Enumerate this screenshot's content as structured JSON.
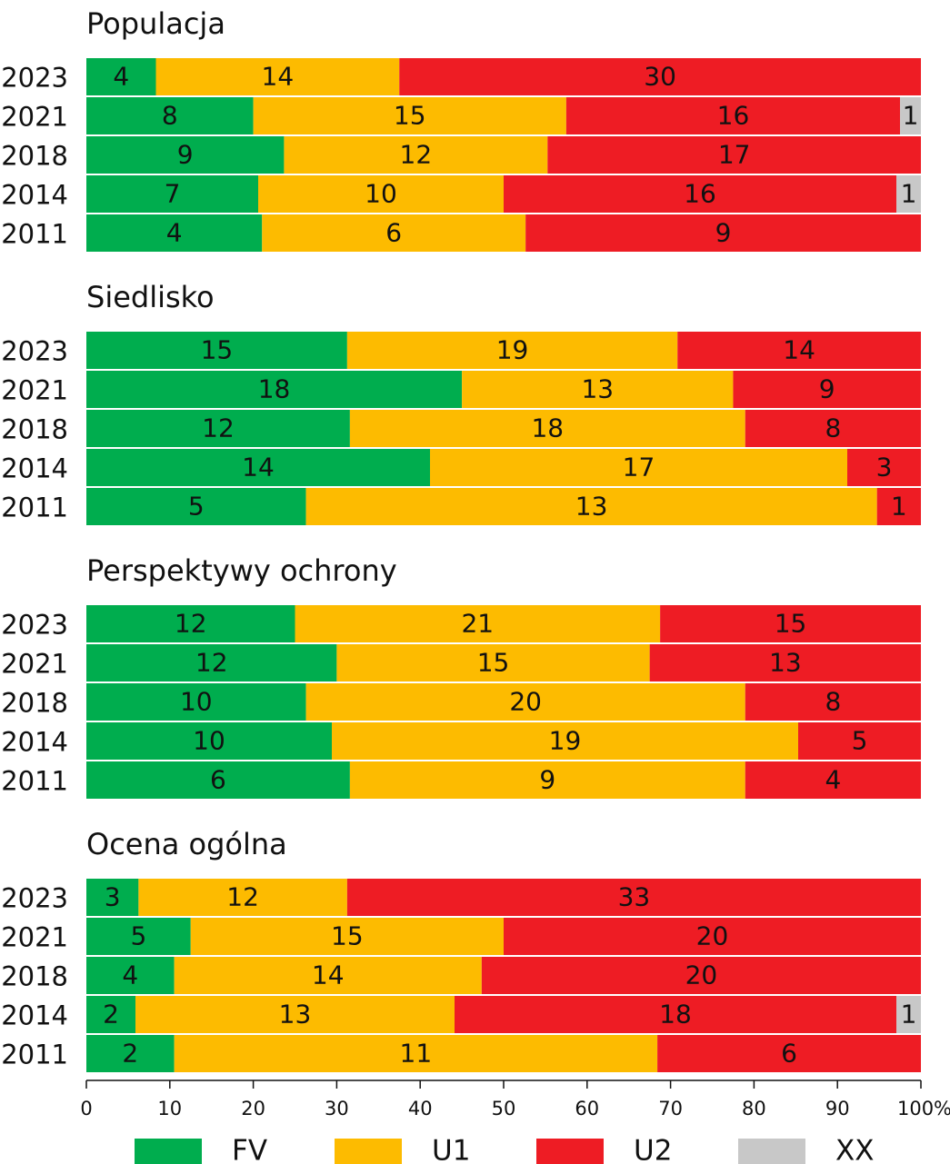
{
  "chart_data": {
    "type": "bar",
    "orientation": "horizontal",
    "stacking": "percent",
    "series": [
      {
        "name": "FV",
        "color": "#00ad4e"
      },
      {
        "name": "U1",
        "color": "#fdbb00"
      },
      {
        "name": "U2",
        "color": "#ee1c24"
      },
      {
        "name": "XX",
        "color": "#c8c8c8"
      }
    ],
    "panels": [
      {
        "title": "Populacja",
        "categories": [
          "2023",
          "2021",
          "2018",
          "2014",
          "2011"
        ],
        "values": [
          [
            4,
            14,
            30,
            null
          ],
          [
            8,
            15,
            16,
            1
          ],
          [
            9,
            12,
            17,
            null
          ],
          [
            7,
            10,
            16,
            1
          ],
          [
            4,
            6,
            9,
            null
          ]
        ]
      },
      {
        "title": "Siedlisko",
        "categories": [
          "2023",
          "2021",
          "2018",
          "2014",
          "2011"
        ],
        "values": [
          [
            15,
            19,
            14,
            null
          ],
          [
            18,
            13,
            9,
            null
          ],
          [
            12,
            18,
            8,
            null
          ],
          [
            14,
            17,
            3,
            null
          ],
          [
            5,
            13,
            1,
            null
          ]
        ]
      },
      {
        "title": "Perspektywy ochrony",
        "categories": [
          "2023",
          "2021",
          "2018",
          "2014",
          "2011"
        ],
        "values": [
          [
            12,
            21,
            15,
            null
          ],
          [
            12,
            15,
            13,
            null
          ],
          [
            10,
            20,
            8,
            null
          ],
          [
            10,
            19,
            5,
            null
          ],
          [
            6,
            9,
            4,
            null
          ]
        ]
      },
      {
        "title": "Ocena ogólna",
        "categories": [
          "2023",
          "2021",
          "2018",
          "2014",
          "2011"
        ],
        "values": [
          [
            3,
            12,
            33,
            null
          ],
          [
            5,
            15,
            20,
            null
          ],
          [
            4,
            14,
            20,
            null
          ],
          [
            2,
            13,
            18,
            1
          ],
          [
            2,
            11,
            6,
            null
          ]
        ]
      }
    ],
    "xlim": [
      0,
      100
    ],
    "xticks": [
      0,
      10,
      20,
      30,
      40,
      50,
      60,
      70,
      80,
      90,
      {
        "value": 100,
        "label": "100%"
      }
    ]
  }
}
